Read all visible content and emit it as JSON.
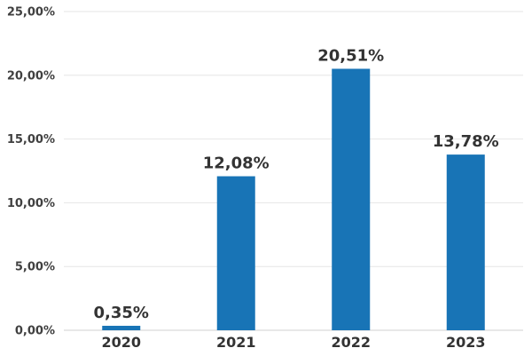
{
  "chart_data": {
    "type": "bar",
    "categories": [
      "2020",
      "2021",
      "2022",
      "2023"
    ],
    "values": [
      0.35,
      12.08,
      20.51,
      13.78
    ],
    "data_labels": [
      "0,35%",
      "12,08%",
      "20,51%",
      "13,78%"
    ],
    "ylim": [
      0,
      25
    ],
    "yticks": [
      0,
      5,
      10,
      15,
      20,
      25
    ],
    "ytick_labels": [
      "0,00%",
      "5,00%",
      "10,00%",
      "15,00%",
      "20,00%",
      "25,00%"
    ],
    "title": "",
    "xlabel": "",
    "ylabel": "",
    "grid": true,
    "legend": "none",
    "bar_color": "#1874b6"
  }
}
